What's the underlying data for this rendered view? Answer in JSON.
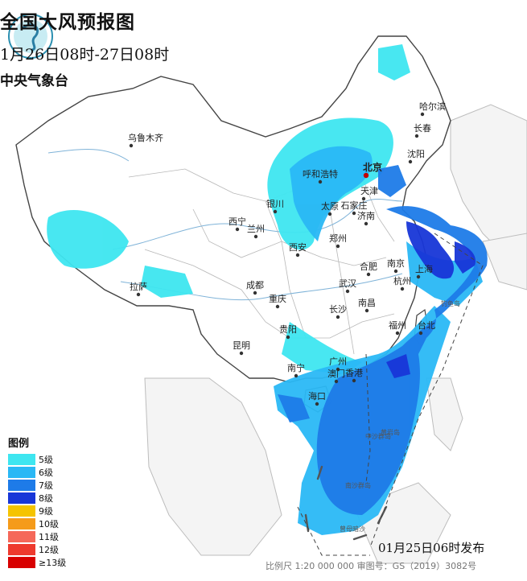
{
  "header": {
    "title": "全国大风预报图",
    "period": "1月26日08时-27日08时",
    "agency": "中央气象台"
  },
  "legend": {
    "title": "图例",
    "items": [
      {
        "label": "5级",
        "color": "#3ee6f0"
      },
      {
        "label": "6级",
        "color": "#2ab8f5"
      },
      {
        "label": "7级",
        "color": "#1e7be8"
      },
      {
        "label": "8级",
        "color": "#1836d8"
      },
      {
        "label": "9级",
        "color": "#f5c400"
      },
      {
        "label": "10级",
        "color": "#f59b1a"
      },
      {
        "label": "11级",
        "color": "#f5685a"
      },
      {
        "label": "12级",
        "color": "#ee3a2e"
      },
      {
        "label": "≥13级",
        "color": "#d80000"
      }
    ]
  },
  "cities": [
    {
      "name": "乌鲁木齐",
      "capital": false
    },
    {
      "name": "哈尔滨",
      "capital": false
    },
    {
      "name": "长春",
      "capital": false
    },
    {
      "name": "沈阳",
      "capital": false
    },
    {
      "name": "北京",
      "capital": true
    },
    {
      "name": "天津",
      "capital": false
    },
    {
      "name": "呼和浩特",
      "capital": false
    },
    {
      "name": "银川",
      "capital": false
    },
    {
      "name": "太原",
      "capital": false
    },
    {
      "name": "石家庄",
      "capital": false
    },
    {
      "name": "济南",
      "capital": false
    },
    {
      "name": "西宁",
      "capital": false
    },
    {
      "name": "兰州",
      "capital": false
    },
    {
      "name": "郑州",
      "capital": false
    },
    {
      "name": "西安",
      "capital": false
    },
    {
      "name": "合肥",
      "capital": false
    },
    {
      "name": "南京",
      "capital": false
    },
    {
      "name": "上海",
      "capital": false
    },
    {
      "name": "杭州",
      "capital": false
    },
    {
      "name": "武汉",
      "capital": false
    },
    {
      "name": "成都",
      "capital": false
    },
    {
      "name": "重庆",
      "capital": false
    },
    {
      "name": "拉萨",
      "capital": false
    },
    {
      "name": "长沙",
      "capital": false
    },
    {
      "name": "南昌",
      "capital": false
    },
    {
      "name": "福州",
      "capital": false
    },
    {
      "name": "台北",
      "capital": false
    },
    {
      "name": "贵阳",
      "capital": false
    },
    {
      "name": "昆明",
      "capital": false
    },
    {
      "name": "南宁",
      "capital": false
    },
    {
      "name": "广州",
      "capital": false
    },
    {
      "name": "香港",
      "capital": false
    },
    {
      "name": "澳门",
      "capital": false
    },
    {
      "name": "海口",
      "capital": false
    }
  ],
  "islands": [
    "钓鱼岛",
    "中沙群岛",
    "黄岩岛",
    "南沙群岛",
    "曾母暗沙"
  ],
  "issued": "01月25日06时发布",
  "footer": "比例尺 1:20 000 000    审图号：GS（2019）3082号",
  "emblem": "emblem-logo"
}
